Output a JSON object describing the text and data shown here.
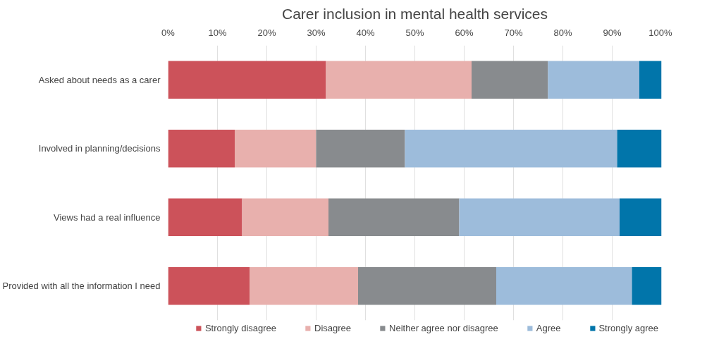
{
  "chart_data": {
    "type": "bar",
    "orientation": "horizontal",
    "stacked": true,
    "title": "Carer inclusion in mental health services",
    "categories": [
      "Asked about needs as a carer",
      "Involved in planning/decisions",
      "Views had a real influence",
      "Provided with all the information I need"
    ],
    "series": [
      {
        "name": "Strongly disagree",
        "color": "#cc525a",
        "values": [
          32,
          13.5,
          15,
          16.5
        ]
      },
      {
        "name": "Disagree",
        "color": "#e8b0ad",
        "values": [
          29.5,
          16.5,
          17.5,
          22
        ]
      },
      {
        "name": "Neither agree nor disagree",
        "color": "#888b8e",
        "values": [
          15.5,
          18,
          26.5,
          28
        ]
      },
      {
        "name": "Agree",
        "color": "#9dbcdb",
        "values": [
          18.5,
          43,
          32.5,
          27.5
        ]
      },
      {
        "name": "Strongly agree",
        "color": "#0175aa",
        "values": [
          4.5,
          9,
          8.5,
          6
        ]
      }
    ],
    "xlim": [
      0,
      100
    ],
    "xticks": [
      {
        "value": 0,
        "label": "0%"
      },
      {
        "value": 10,
        "label": "10%"
      },
      {
        "value": 20,
        "label": "20%"
      },
      {
        "value": 30,
        "label": "30%"
      },
      {
        "value": 40,
        "label": "40%"
      },
      {
        "value": 50,
        "label": "50%"
      },
      {
        "value": 60,
        "label": "60%"
      },
      {
        "value": 70,
        "label": "70%"
      },
      {
        "value": 80,
        "label": "80%"
      },
      {
        "value": 90,
        "label": "90%"
      },
      {
        "value": 100,
        "label": "100%"
      }
    ],
    "grid": "x",
    "legend": "bottom"
  }
}
